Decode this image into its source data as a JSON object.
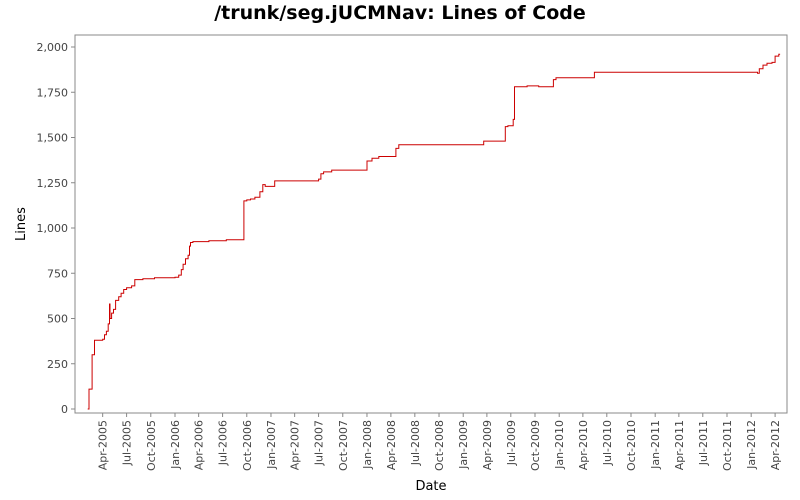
{
  "chart_data": {
    "type": "line",
    "title": "/trunk/seg.jUCMNav: Lines of Code",
    "xlabel": "Date",
    "ylabel": "Lines",
    "xlim": [
      "2005-01-01",
      "2012-05-01"
    ],
    "ylim": [
      0,
      2000
    ],
    "grid": false,
    "line_color": "#cc0000",
    "y_ticks": [
      {
        "value": 0,
        "label": "0"
      },
      {
        "value": 250,
        "label": "250"
      },
      {
        "value": 500,
        "label": "500"
      },
      {
        "value": 750,
        "label": "750"
      },
      {
        "value": 1000,
        "label": "1,000"
      },
      {
        "value": 1250,
        "label": "1,250"
      },
      {
        "value": 1500,
        "label": "1,500"
      },
      {
        "value": 1750,
        "label": "1,750"
      },
      {
        "value": 2000,
        "label": "2,000"
      }
    ],
    "x_ticks": [
      {
        "date": "2005-04-01",
        "label": "Apr-2005"
      },
      {
        "date": "2005-07-01",
        "label": "Jul-2005"
      },
      {
        "date": "2005-10-01",
        "label": "Oct-2005"
      },
      {
        "date": "2006-01-01",
        "label": "Jan-2006"
      },
      {
        "date": "2006-04-01",
        "label": "Apr-2006"
      },
      {
        "date": "2006-07-01",
        "label": "Jul-2006"
      },
      {
        "date": "2006-10-01",
        "label": "Oct-2006"
      },
      {
        "date": "2007-01-01",
        "label": "Jan-2007"
      },
      {
        "date": "2007-04-01",
        "label": "Apr-2007"
      },
      {
        "date": "2007-07-01",
        "label": "Jul-2007"
      },
      {
        "date": "2007-10-01",
        "label": "Oct-2007"
      },
      {
        "date": "2008-01-01",
        "label": "Jan-2008"
      },
      {
        "date": "2008-04-01",
        "label": "Apr-2008"
      },
      {
        "date": "2008-07-01",
        "label": "Jul-2008"
      },
      {
        "date": "2008-10-01",
        "label": "Oct-2008"
      },
      {
        "date": "2009-01-01",
        "label": "Jan-2009"
      },
      {
        "date": "2009-04-01",
        "label": "Apr-2009"
      },
      {
        "date": "2009-07-01",
        "label": "Jul-2009"
      },
      {
        "date": "2009-10-01",
        "label": "Oct-2009"
      },
      {
        "date": "2010-01-01",
        "label": "Jan-2010"
      },
      {
        "date": "2010-04-01",
        "label": "Apr-2010"
      },
      {
        "date": "2010-07-01",
        "label": "Jul-2010"
      },
      {
        "date": "2010-10-01",
        "label": "Oct-2010"
      },
      {
        "date": "2011-01-01",
        "label": "Jan-2011"
      },
      {
        "date": "2011-04-01",
        "label": "Apr-2011"
      },
      {
        "date": "2011-07-01",
        "label": "Jul-2011"
      },
      {
        "date": "2011-10-01",
        "label": "Oct-2011"
      },
      {
        "date": "2012-01-01",
        "label": "Jan-2012"
      },
      {
        "date": "2012-04-01",
        "label": "Apr-2012"
      }
    ],
    "series": [
      {
        "step": true,
        "points": [
          [
            "2005-02-03",
            0
          ],
          [
            "2005-02-08",
            110
          ],
          [
            "2005-02-20",
            300
          ],
          [
            "2005-03-01",
            380
          ],
          [
            "2005-04-01",
            385
          ],
          [
            "2005-04-08",
            410
          ],
          [
            "2005-04-15",
            430
          ],
          [
            "2005-04-22",
            470
          ],
          [
            "2005-04-27",
            580
          ],
          [
            "2005-04-29",
            500
          ],
          [
            "2005-05-05",
            530
          ],
          [
            "2005-05-12",
            550
          ],
          [
            "2005-05-20",
            600
          ],
          [
            "2005-06-01",
            620
          ],
          [
            "2005-06-10",
            640
          ],
          [
            "2005-06-20",
            660
          ],
          [
            "2005-07-01",
            670
          ],
          [
            "2005-07-20",
            680
          ],
          [
            "2005-08-01",
            715
          ],
          [
            "2005-09-01",
            720
          ],
          [
            "2005-10-15",
            725
          ],
          [
            "2006-01-01",
            728
          ],
          [
            "2006-01-15",
            740
          ],
          [
            "2006-01-25",
            770
          ],
          [
            "2006-02-01",
            800
          ],
          [
            "2006-02-10",
            830
          ],
          [
            "2006-02-20",
            850
          ],
          [
            "2006-02-25",
            900
          ],
          [
            "2006-03-01",
            920
          ],
          [
            "2006-03-10",
            925
          ],
          [
            "2006-05-10",
            930
          ],
          [
            "2006-07-15",
            935
          ],
          [
            "2006-09-20",
            1150
          ],
          [
            "2006-10-01",
            1155
          ],
          [
            "2006-10-15",
            1160
          ],
          [
            "2006-11-01",
            1170
          ],
          [
            "2006-11-20",
            1200
          ],
          [
            "2006-12-01",
            1240
          ],
          [
            "2006-12-10",
            1230
          ],
          [
            "2007-01-15",
            1260
          ],
          [
            "2007-07-01",
            1270
          ],
          [
            "2007-07-10",
            1300
          ],
          [
            "2007-07-20",
            1310
          ],
          [
            "2007-08-20",
            1320
          ],
          [
            "2008-01-01",
            1370
          ],
          [
            "2008-01-20",
            1385
          ],
          [
            "2008-02-15",
            1395
          ],
          [
            "2008-04-20",
            1440
          ],
          [
            "2008-05-01",
            1460
          ],
          [
            "2009-03-20",
            1480
          ],
          [
            "2009-06-10",
            1560
          ],
          [
            "2009-06-20",
            1565
          ],
          [
            "2009-07-10",
            1600
          ],
          [
            "2009-07-15",
            1780
          ],
          [
            "2009-09-01",
            1785
          ],
          [
            "2009-10-15",
            1780
          ],
          [
            "2009-12-10",
            1820
          ],
          [
            "2009-12-20",
            1830
          ],
          [
            "2010-05-15",
            1860
          ],
          [
            "2012-01-25",
            1855
          ],
          [
            "2012-02-01",
            1880
          ],
          [
            "2012-02-15",
            1900
          ],
          [
            "2012-03-01",
            1910
          ],
          [
            "2012-03-20",
            1915
          ],
          [
            "2012-04-01",
            1950
          ],
          [
            "2012-04-15",
            1960
          ],
          [
            "2012-04-20",
            1960
          ]
        ]
      }
    ]
  }
}
